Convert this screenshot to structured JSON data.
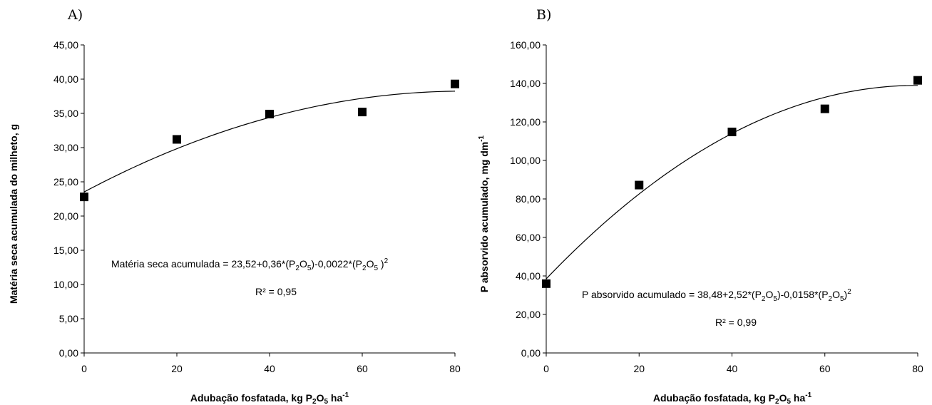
{
  "chart_data": [
    {
      "panel": "A)",
      "type": "scatter",
      "x": [
        0,
        20,
        40,
        60,
        80
      ],
      "y": [
        22.8,
        31.2,
        34.9,
        35.2,
        39.3
      ],
      "xlabel": {
        "main": "Adubação fosfatada, kg P",
        "sub": "2",
        "mid": "O",
        "sub2": "5",
        "end": " ha",
        "sup": "-1"
      },
      "ylabel": "Matéria seca acumulada do milheto, g",
      "xlim": [
        0,
        80
      ],
      "ylim": [
        0,
        45
      ],
      "xticks": [
        0,
        20,
        40,
        60,
        80
      ],
      "xtick_labels": [
        "0",
        "20",
        "40",
        "60",
        "80"
      ],
      "yticks": [
        0,
        5,
        10,
        15,
        20,
        25,
        30,
        35,
        40,
        45
      ],
      "ytick_labels": [
        "0,00",
        "5,00",
        "10,00",
        "15,00",
        "20,00",
        "25,00",
        "30,00",
        "35,00",
        "40,00",
        "45,00"
      ],
      "fit": {
        "a": 23.52,
        "b": 0.36,
        "c": -0.0022
      },
      "equation": {
        "p1": "Matéria seca acumulada = 23,52+0,36*(P",
        "s1": "2",
        "p2": "O",
        "s2": "5",
        "p3": ")-0,0022*(P",
        "s3": "2",
        "p4": "O",
        "s4": "5",
        "p5": " )",
        "sup": "2"
      },
      "r2": "R² = 0,95",
      "grid": false
    },
    {
      "panel": "B)",
      "type": "scatter",
      "x": [
        0,
        20,
        40,
        60,
        80
      ],
      "y": [
        36.0,
        87.2,
        114.8,
        126.8,
        141.6
      ],
      "xlabel": {
        "main": "Adubação fosfatada, kg P",
        "sub": "2",
        "mid": "O",
        "sub2": "5",
        "end": " ha",
        "sup": "-1"
      },
      "ylabel": {
        "main": "P absorvido acumulado, mg dm",
        "sup": "-1"
      },
      "xlim": [
        0,
        80
      ],
      "ylim": [
        0,
        160
      ],
      "xticks": [
        0,
        20,
        40,
        60,
        80
      ],
      "xtick_labels": [
        "0",
        "20",
        "40",
        "60",
        "80"
      ],
      "yticks": [
        0,
        20,
        40,
        60,
        80,
        100,
        120,
        140,
        160
      ],
      "ytick_labels": [
        "0,00",
        "20,00",
        "40,00",
        "60,00",
        "80,00",
        "100,00",
        "120,00",
        "140,00",
        "160,00"
      ],
      "fit": {
        "a": 38.48,
        "b": 2.52,
        "c": -0.0158
      },
      "equation": {
        "p1": "P absorvido acumulado = 38,48+2,52*(P",
        "s1": "2",
        "p2": "O",
        "s2": "5",
        "p3": ")-0,0158*(P",
        "s3": "2",
        "p4": "O",
        "s4": "5",
        "p5": ")",
        "sup": "2"
      },
      "r2": "R² = 0,99",
      "grid": false
    }
  ]
}
